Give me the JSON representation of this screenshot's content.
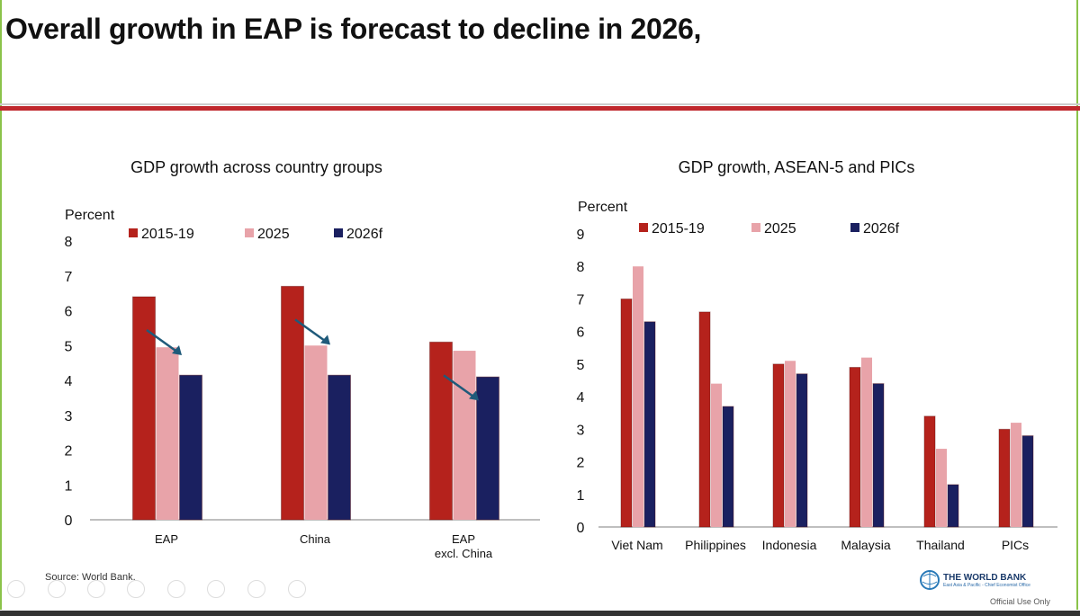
{
  "slide": {
    "title": "Overall growth in EAP is forecast to decline in 2026,",
    "source": "Source: World Bank.",
    "logo_text": "THE WORLD BANK",
    "logo_subtext": "East Asia & Pacific - Chief Economist Office",
    "classification": "Official Use Only"
  },
  "colors": {
    "s2015_19": "#b5221c",
    "s2025": "#e8a3a9",
    "s2026f": "#1a2060",
    "accent_red": "#c0282d",
    "arrow": "#1f5a7a"
  },
  "chart_data": [
    {
      "type": "bar",
      "title": "GDP growth across country groups",
      "ylabel": "Percent",
      "ylim": [
        0,
        8
      ],
      "yticks": [
        "0",
        "1",
        "2",
        "3",
        "4",
        "5",
        "6",
        "7",
        "8"
      ],
      "categories": [
        "EAP",
        "China",
        "EAP excl. China"
      ],
      "category_lines": [
        [
          "EAP"
        ],
        [
          "China"
        ],
        [
          "EAP",
          "excl. China"
        ]
      ],
      "legend_position": "top",
      "grid": false,
      "series": [
        {
          "name": "2015-19",
          "values": [
            6.4,
            6.7,
            5.1
          ]
        },
        {
          "name": "2025",
          "values": [
            4.95,
            5.0,
            4.85
          ]
        },
        {
          "name": "2026f",
          "values": [
            4.15,
            4.15,
            4.1
          ]
        }
      ]
    },
    {
      "type": "bar",
      "title": "GDP growth, ASEAN-5 and PICs",
      "ylabel": "Percent",
      "ylim": [
        0,
        9
      ],
      "yticks": [
        "0",
        "1",
        "2",
        "3",
        "4",
        "5",
        "6",
        "7",
        "8",
        "9"
      ],
      "categories": [
        "Viet Nam",
        "Philippines",
        "Indonesia",
        "Malaysia",
        "Thailand",
        "PICs"
      ],
      "legend_position": "top",
      "grid": false,
      "series": [
        {
          "name": "2015-19",
          "values": [
            7.0,
            6.6,
            5.0,
            4.9,
            3.4,
            3.0
          ]
        },
        {
          "name": "2025",
          "values": [
            8.0,
            4.4,
            5.1,
            5.2,
            2.4,
            3.2
          ]
        },
        {
          "name": "2026f",
          "values": [
            6.3,
            3.7,
            4.7,
            4.4,
            1.3,
            2.8
          ]
        }
      ]
    }
  ]
}
